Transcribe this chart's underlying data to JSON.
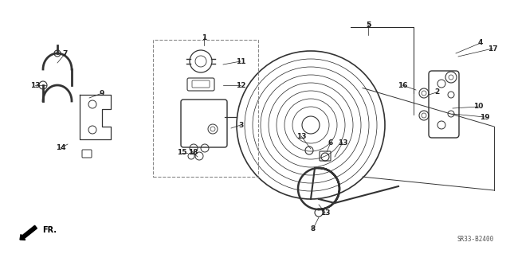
{
  "bg_color": "#ffffff",
  "diagram_code": "SR33-B2400",
  "fr_label": "FR.",
  "line_color": "#333333",
  "text_color": "#222222",
  "labels_data": [
    [
      "1",
      256,
      272,
      256,
      262
    ],
    [
      "2",
      548,
      203,
      538,
      200
    ],
    [
      "3",
      302,
      162,
      290,
      158
    ],
    [
      "4",
      603,
      265,
      572,
      252
    ],
    [
      "5",
      462,
      288,
      462,
      275
    ],
    [
      "6",
      415,
      140,
      410,
      128
    ],
    [
      "7",
      82,
      252,
      72,
      240
    ],
    [
      "8",
      393,
      32,
      400,
      46
    ],
    [
      "9",
      128,
      202,
      112,
      196
    ],
    [
      "10",
      600,
      185,
      568,
      183
    ],
    [
      "11",
      302,
      242,
      280,
      238
    ],
    [
      "12",
      302,
      212,
      280,
      212
    ],
    [
      "13",
      44,
      212,
      58,
      212
    ],
    [
      "13",
      378,
      148,
      390,
      132
    ],
    [
      "13",
      430,
      140,
      420,
      122
    ],
    [
      "13",
      408,
      52,
      400,
      62
    ],
    [
      "14",
      76,
      133,
      85,
      138
    ],
    [
      "15",
      228,
      127,
      235,
      127
    ],
    [
      "16",
      505,
      212,
      522,
      206
    ],
    [
      "17",
      618,
      258,
      575,
      248
    ],
    [
      "18",
      242,
      127,
      248,
      122
    ],
    [
      "19",
      608,
      172,
      568,
      176
    ]
  ]
}
